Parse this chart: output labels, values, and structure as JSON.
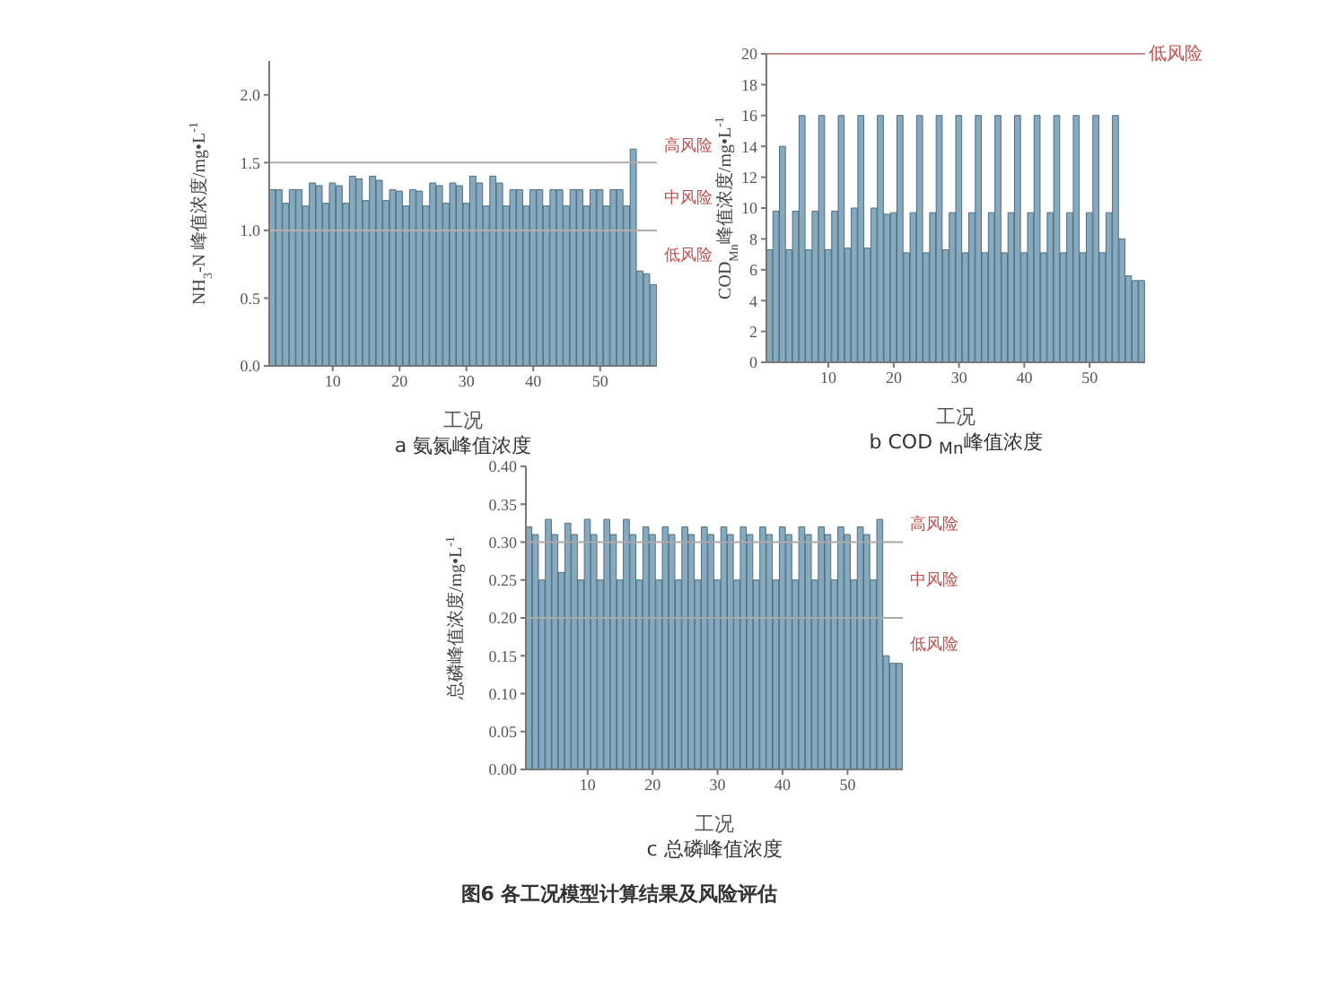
{
  "chart_data": [
    {
      "type": "bar",
      "subtitle": "a  氨氮峰值浓度",
      "xlabel": "工况",
      "ylabel": "NH$_{3}$-N 峰值浓度/mg•L$^{-1}$",
      "color": "#86a9bd",
      "x": [
        1,
        2,
        3,
        4,
        5,
        6,
        7,
        8,
        9,
        10,
        11,
        12,
        13,
        14,
        15,
        16,
        17,
        18,
        19,
        20,
        21,
        22,
        23,
        24,
        25,
        26,
        27,
        28,
        29,
        30,
        31,
        32,
        33,
        34,
        35,
        36,
        37,
        38,
        39,
        40,
        41,
        42,
        43,
        44,
        45,
        46,
        47,
        48,
        49,
        50,
        51,
        52,
        53,
        54,
        55,
        56,
        57,
        58
      ],
      "values": [
        1.3,
        1.3,
        1.2,
        1.3,
        1.3,
        1.18,
        1.35,
        1.33,
        1.2,
        1.35,
        1.33,
        1.2,
        1.4,
        1.38,
        1.22,
        1.4,
        1.37,
        1.22,
        1.3,
        1.29,
        1.18,
        1.3,
        1.29,
        1.18,
        1.35,
        1.33,
        1.2,
        1.35,
        1.33,
        1.2,
        1.4,
        1.35,
        1.18,
        1.4,
        1.35,
        1.18,
        1.3,
        1.3,
        1.18,
        1.3,
        1.3,
        1.18,
        1.3,
        1.3,
        1.18,
        1.3,
        1.3,
        1.18,
        1.3,
        1.3,
        1.18,
        1.3,
        1.3,
        1.18,
        1.6,
        0.7,
        0.68,
        0.6
      ],
      "xlim": [
        0.5,
        58.5
      ],
      "xticks": [
        10,
        20,
        30,
        40,
        50
      ],
      "ylim": [
        0,
        2.25
      ],
      "yticks": [
        {
          "value": 0,
          "label": "0.0"
        },
        {
          "value": 0.5,
          "label": "0.5"
        },
        {
          "value": 1,
          "label": "1.0"
        },
        {
          "value": 1.5,
          "label": "1.5"
        },
        {
          "value": 2,
          "label": "2.0"
        }
      ],
      "ref_lines": [
        {
          "axis": "y",
          "value": 1.5,
          "color": "#b9aaaa"
        },
        {
          "axis": "y",
          "value": 1,
          "color": "#b9aaaa"
        }
      ],
      "annotations": [
        "高风险",
        "中风险",
        "低风险"
      ]
    },
    {
      "type": "bar",
      "subtitle": "b COD $_{Mn}$峰值浓度",
      "xlabel": "工况",
      "ylabel": "COD$_{Mn}$峰值浓度/mg•L$^{-1}$",
      "color": "#86a9bd",
      "x": [
        1,
        2,
        3,
        4,
        5,
        6,
        7,
        8,
        9,
        10,
        11,
        12,
        13,
        14,
        15,
        16,
        17,
        18,
        19,
        20,
        21,
        22,
        23,
        24,
        25,
        26,
        27,
        28,
        29,
        30,
        31,
        32,
        33,
        34,
        35,
        36,
        37,
        38,
        39,
        40,
        41,
        42,
        43,
        44,
        45,
        46,
        47,
        48,
        49,
        50,
        51,
        52,
        53,
        54,
        55,
        56,
        57,
        58
      ],
      "values": [
        7.3,
        9.8,
        14,
        7.3,
        9.8,
        16,
        7.3,
        9.8,
        16,
        7.3,
        9.8,
        16,
        7.4,
        10,
        16,
        7.4,
        10,
        16,
        9.6,
        9.7,
        16,
        7.1,
        9.7,
        16,
        7.1,
        9.7,
        16,
        7.3,
        9.7,
        16,
        7.1,
        9.7,
        16,
        7.1,
        9.7,
        16,
        7.1,
        9.7,
        16,
        7.1,
        9.7,
        16,
        7.1,
        9.7,
        16,
        7.1,
        9.7,
        16,
        7.1,
        9.7,
        16,
        7.1,
        9.7,
        16,
        8,
        5.6,
        5.3,
        5.3
      ],
      "xlim": [
        0.5,
        58.5
      ],
      "xticks": [
        10,
        20,
        30,
        40,
        50
      ],
      "ylim": [
        0,
        20
      ],
      "yticks": [
        0,
        2,
        4,
        6,
        8,
        10,
        12,
        14,
        16,
        18,
        20
      ],
      "ref_lines": [
        {
          "axis": "y",
          "value": 20,
          "label": "低风险",
          "color": "#c48a8a"
        }
      ]
    },
    {
      "type": "bar",
      "subtitle": "c  总磷峰值浓度",
      "xlabel": "工况",
      "ylabel": "总磷峰值浓度/mg•L$^{-1}$",
      "color": "#86a9bd",
      "x": [
        1,
        2,
        3,
        4,
        5,
        6,
        7,
        8,
        9,
        10,
        11,
        12,
        13,
        14,
        15,
        16,
        17,
        18,
        19,
        20,
        21,
        22,
        23,
        24,
        25,
        26,
        27,
        28,
        29,
        30,
        31,
        32,
        33,
        34,
        35,
        36,
        37,
        38,
        39,
        40,
        41,
        42,
        43,
        44,
        45,
        46,
        47,
        48,
        49,
        50,
        51,
        52,
        53,
        54,
        55,
        56,
        57,
        58
      ],
      "values": [
        0.32,
        0.31,
        0.25,
        0.33,
        0.31,
        0.26,
        0.325,
        0.31,
        0.25,
        0.33,
        0.31,
        0.25,
        0.33,
        0.31,
        0.25,
        0.33,
        0.31,
        0.25,
        0.32,
        0.31,
        0.25,
        0.32,
        0.31,
        0.25,
        0.32,
        0.31,
        0.25,
        0.32,
        0.31,
        0.25,
        0.32,
        0.31,
        0.25,
        0.32,
        0.31,
        0.25,
        0.32,
        0.31,
        0.25,
        0.32,
        0.31,
        0.25,
        0.32,
        0.31,
        0.25,
        0.32,
        0.31,
        0.25,
        0.32,
        0.31,
        0.25,
        0.32,
        0.31,
        0.25,
        0.33,
        0.15,
        0.14,
        0.14
      ],
      "xlim": [
        0.5,
        58.5
      ],
      "xticks": [
        10,
        20,
        30,
        40,
        50
      ],
      "ylim": [
        0,
        0.4
      ],
      "yticks": [
        {
          "value": 0,
          "label": "0.00"
        },
        {
          "value": 0.05,
          "label": "0.05"
        },
        {
          "value": 0.1,
          "label": "0.10"
        },
        {
          "value": 0.15,
          "label": "0.15"
        },
        {
          "value": 0.2,
          "label": "0.20"
        },
        {
          "value": 0.25,
          "label": "0.25"
        },
        {
          "value": 0.3,
          "label": "0.30"
        },
        {
          "value": 0.35,
          "label": "0.35"
        },
        {
          "value": 0.4,
          "label": "0.40"
        }
      ],
      "ref_lines": [
        {
          "axis": "y",
          "value": 0.3,
          "color": "#a9a9a9"
        },
        {
          "axis": "y",
          "value": 0.2,
          "color": "#a9a9a9"
        }
      ],
      "annotations": [
        "高风险",
        "中风险",
        "低风险",
        "图6 各工况模型计算结果及风险评估"
      ]
    }
  ]
}
